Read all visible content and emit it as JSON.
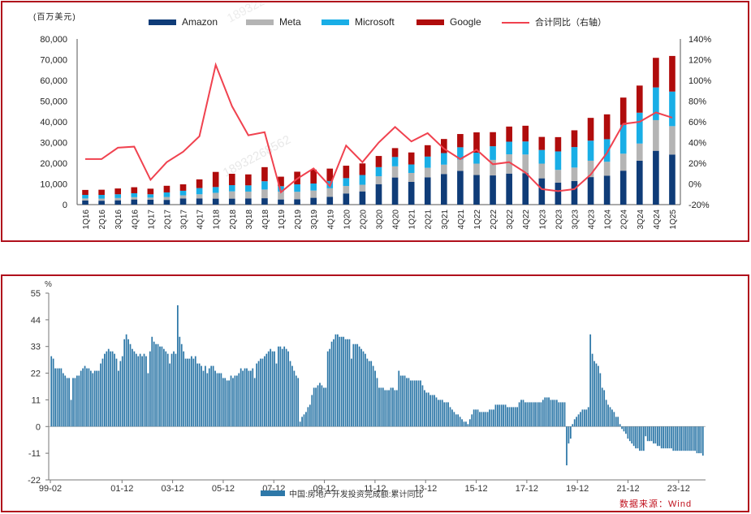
{
  "chart_data": [
    {
      "type": "bar",
      "stacked": true,
      "unit_label": "(百万美元)",
      "categories": [
        "1Q16",
        "2Q16",
        "3Q16",
        "4Q16",
        "1Q17",
        "2Q17",
        "3Q17",
        "4Q17",
        "1Q18",
        "2Q18",
        "3Q18",
        "4Q18",
        "1Q19",
        "2Q19",
        "3Q19",
        "4Q19",
        "1Q20",
        "2Q20",
        "3Q20",
        "4Q20",
        "1Q21",
        "2Q21",
        "3Q21",
        "4Q21",
        "1Q22",
        "2Q22",
        "3Q22",
        "4Q22",
        "1Q23",
        "2Q23",
        "3Q23",
        "4Q23",
        "1Q24",
        "2Q24",
        "3Q24",
        "4Q24",
        "1Q25"
      ],
      "series": [
        {
          "name": "Amazon",
          "color": "#0f3c78",
          "values": [
            2000,
            1900,
            2100,
            2500,
            2400,
            2300,
            3000,
            3000,
            2900,
            2900,
            3000,
            3100,
            2500,
            2600,
            3300,
            3800,
            5400,
            6400,
            9900,
            13100,
            11000,
            13200,
            14800,
            16300,
            14300,
            14100,
            15000,
            15200,
            12700,
            10600,
            11400,
            13300,
            14000,
            16400,
            21200,
            26000,
            24200
          ]
        },
        {
          "name": "Meta",
          "color": "#b4b4b4",
          "values": [
            1000,
            1000,
            1100,
            1100,
            1000,
            1400,
            1500,
            2000,
            2800,
            3500,
            3300,
            4200,
            3800,
            3600,
            3500,
            4100,
            3600,
            3200,
            3800,
            5400,
            4300,
            4600,
            4500,
            5500,
            5500,
            7500,
            9300,
            9000,
            7100,
            6200,
            6500,
            7900,
            6700,
            8200,
            8300,
            14800,
            13700
          ]
        },
        {
          "name": "Microsoft",
          "color": "#19aee6",
          "values": [
            1700,
            1800,
            1800,
            1900,
            1600,
            2200,
            2200,
            3000,
            2800,
            3000,
            3000,
            4000,
            2600,
            3600,
            3400,
            3500,
            3800,
            4700,
            4400,
            4500,
            4100,
            5400,
            5600,
            5900,
            5300,
            6600,
            6100,
            6300,
            6600,
            8900,
            9900,
            9700,
            10900,
            13900,
            14900,
            15800,
            16700
          ]
        },
        {
          "name": "Google",
          "color": "#b00c0c",
          "values": [
            2400,
            2500,
            2800,
            2900,
            2700,
            3200,
            3100,
            4200,
            7300,
            5500,
            5300,
            6800,
            4600,
            6100,
            6700,
            6000,
            6000,
            5600,
            5400,
            4300,
            5800,
            5500,
            6800,
            6400,
            9800,
            6800,
            7300,
            7600,
            6300,
            6900,
            8100,
            11000,
            12000,
            13200,
            13100,
            14300,
            17200
          ]
        },
        {
          "name": "合计同比（右轴）",
          "color": "#f0424f",
          "axis": "right",
          "values": [
            24,
            24,
            35,
            36,
            4,
            21,
            31,
            46,
            115,
            75,
            47,
            50,
            -8,
            5,
            15,
            -2,
            37,
            21,
            40,
            55,
            41,
            49,
            34,
            24,
            33,
            19,
            21,
            11,
            -5,
            -7,
            -5,
            9,
            30,
            58,
            60,
            69,
            64
          ]
        }
      ],
      "ylim": [
        0,
        80000
      ],
      "yticks": [
        "0",
        "10,000",
        "20,000",
        "30,000",
        "40,000",
        "50,000",
        "60,000",
        "70,000",
        "80,000"
      ],
      "y2lim": [
        -20,
        140
      ],
      "y2ticks": [
        "-20%",
        "0%",
        "20%",
        "40%",
        "60%",
        "80%",
        "100%",
        "120%",
        "140%"
      ],
      "legend_position": "top"
    },
    {
      "type": "bar",
      "unit_label": "%",
      "series_name": "中国:房地产开发投资完成额:累计同比",
      "color": "#2e78a8",
      "ylim": [
        -22,
        55
      ],
      "yticks": [
        "55",
        "44",
        "33",
        "22",
        "11",
        "0",
        "-11",
        "-22"
      ],
      "xticks": [
        "99-02",
        "01-12",
        "03-12",
        "05-12",
        "07-12",
        "09-12",
        "11-12",
        "13-12",
        "15-12",
        "17-12",
        "19-12",
        "21-12",
        "23-12"
      ],
      "x_range": [
        "1999-02",
        "2024-12"
      ],
      "values": [
        29,
        28,
        24,
        24,
        24,
        24,
        22,
        21,
        20,
        20,
        11,
        20,
        20,
        21,
        21,
        23,
        24,
        25,
        24,
        24,
        23,
        22,
        23,
        23,
        23,
        26,
        28,
        30,
        31,
        32,
        31,
        31,
        30,
        28,
        23,
        27,
        29,
        36,
        38,
        36,
        34,
        32,
        31,
        30,
        29,
        30,
        29,
        30,
        29,
        22,
        31,
        37,
        35,
        34,
        34,
        33,
        33,
        32,
        31,
        30,
        26,
        30,
        31,
        30,
        50,
        37,
        34,
        31,
        28,
        28,
        28,
        29,
        28,
        29,
        26,
        26,
        25,
        23,
        25,
        22,
        24,
        25,
        25,
        23,
        22,
        22,
        22,
        20,
        20,
        19,
        19,
        21,
        20,
        21,
        21,
        22,
        24,
        23,
        24,
        24,
        23,
        23,
        24,
        20,
        26,
        27,
        28,
        28,
        29,
        30,
        31,
        32,
        31,
        31,
        26,
        33,
        33,
        32,
        33,
        32,
        31,
        27,
        25,
        23,
        21,
        20,
        2,
        4,
        5,
        6,
        8,
        9,
        13,
        16,
        16,
        17,
        18,
        17,
        16,
        16,
        31,
        32,
        35,
        36,
        38,
        38,
        37,
        37,
        37,
        36,
        36,
        36,
        28,
        34,
        34,
        34,
        33,
        32,
        31,
        30,
        28,
        27,
        27,
        25,
        23,
        20,
        16,
        16,
        16,
        15,
        15,
        15,
        16,
        16,
        15,
        15,
        23,
        21,
        21,
        21,
        20,
        20,
        19,
        19,
        19,
        19,
        19,
        19,
        17,
        15,
        14,
        14,
        13,
        13,
        13,
        12,
        11,
        11,
        11,
        10,
        10,
        10,
        8,
        7,
        6,
        5,
        5,
        4,
        3,
        2,
        2,
        1,
        3,
        5,
        7,
        7,
        7,
        6,
        6,
        6,
        6,
        6,
        7,
        7,
        7,
        9,
        9,
        9,
        9,
        9,
        9,
        8,
        8,
        8,
        8,
        8,
        8,
        10,
        11,
        11,
        10,
        10,
        10,
        10,
        10,
        10,
        10,
        10,
        10,
        11,
        12,
        12,
        12,
        11,
        11,
        11,
        11,
        10,
        10,
        10,
        10,
        -16,
        -7,
        -5,
        1,
        3,
        4,
        5,
        6,
        7,
        7,
        7,
        8,
        38,
        30,
        27,
        26,
        25,
        22,
        16,
        15,
        11,
        9,
        8,
        7,
        6,
        4,
        4,
        1,
        -1,
        -2,
        -3,
        -5,
        -6,
        -7,
        -8,
        -9,
        -9,
        -10,
        -10,
        -10,
        -4,
        -6,
        -6,
        -6,
        -7,
        -7,
        -8,
        -8,
        -9,
        -9,
        -9,
        -9,
        -9,
        -9,
        -10,
        -10,
        -10,
        -10,
        -10,
        -10,
        -10,
        -10,
        -10,
        -10,
        -10,
        -10,
        -11,
        -11,
        -11,
        -12
      ]
    }
  ],
  "source_note": "数据来源：Wind",
  "watermark": "18932268562"
}
